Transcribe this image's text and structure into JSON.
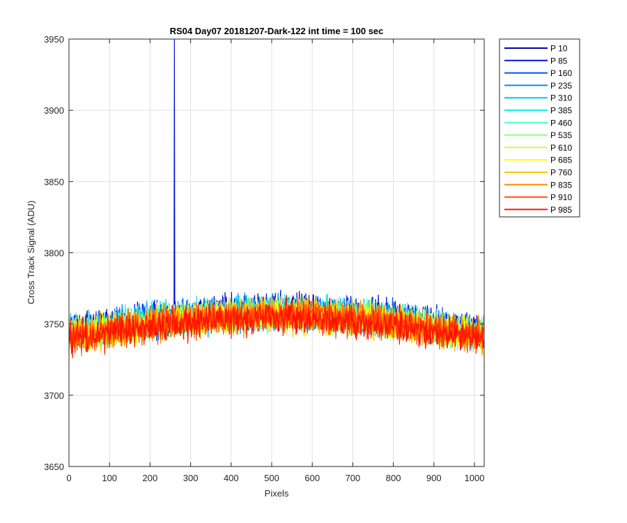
{
  "chart_data": {
    "type": "line",
    "title": "RS04 Day07 20181207-Dark-122 int time = 100 sec",
    "xlabel": "Pixels",
    "ylabel": "Cross Track Signal (ADU)",
    "xlim": [
      0,
      1024
    ],
    "ylim": [
      3650,
      3950
    ],
    "xticks": [
      0,
      100,
      200,
      300,
      400,
      500,
      600,
      700,
      800,
      900,
      1000
    ],
    "yticks": [
      3650,
      3700,
      3750,
      3800,
      3850,
      3900,
      3950
    ],
    "grid": true,
    "legend_location": "outside-right-top",
    "series_profile": {
      "n_points": 1024,
      "baseline": "approx 3742 at edges rising to approx 3757 near pixel 550",
      "noise_amplitude_adu": 15,
      "spike": {
        "series": "P 85",
        "x": 260,
        "y": 3950
      }
    },
    "series": [
      {
        "name": "P 10",
        "color": "#0000a8"
      },
      {
        "name": "P 85",
        "color": "#0010e0"
      },
      {
        "name": "P 160",
        "color": "#0050ff"
      },
      {
        "name": "P 235",
        "color": "#008cff"
      },
      {
        "name": "P 310",
        "color": "#00c4ff"
      },
      {
        "name": "P 385",
        "color": "#10f0ee"
      },
      {
        "name": "P 460",
        "color": "#50ffc0"
      },
      {
        "name": "P 535",
        "color": "#8cff80"
      },
      {
        "name": "P 610",
        "color": "#c8ff40"
      },
      {
        "name": "P 685",
        "color": "#ffff00"
      },
      {
        "name": "P 760",
        "color": "#ffc400"
      },
      {
        "name": "P 835",
        "color": "#ff8c00"
      },
      {
        "name": "P 910",
        "color": "#ff5000"
      },
      {
        "name": "P 985",
        "color": "#ff1400"
      }
    ]
  }
}
